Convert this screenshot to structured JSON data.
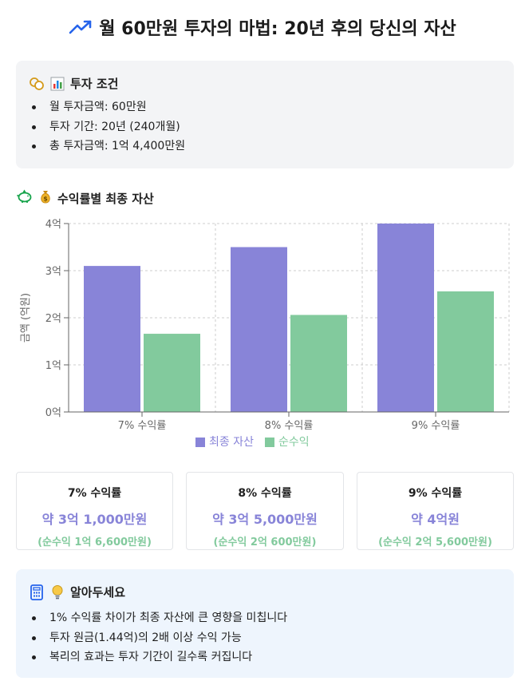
{
  "title": "월 60만원 투자의 마법: 20년 후의 당신의 자산",
  "icons": {
    "title": "trending-up-icon",
    "conditions_a": "coins-icon",
    "conditions_b": "bar-chart-emoji-icon",
    "chart_a": "piggy-bank-icon",
    "chart_b": "money-bag-icon",
    "tips_a": "calculator-icon",
    "tips_b": "lightbulb-icon"
  },
  "conditions": {
    "heading": "투자 조건",
    "items": [
      "월 투자금액: 60만원",
      "투자 기간: 20년 (240개월)",
      "총 투자금액: 1억 4,400만원"
    ]
  },
  "chart_heading": "수익률별 최종 자산",
  "chart_data": {
    "type": "bar",
    "categories": [
      "7% 수익률",
      "8% 수익률",
      "9% 수익률"
    ],
    "series": [
      {
        "name": "최종 자산",
        "values": [
          3.1,
          3.5,
          4.0
        ],
        "color": "#8884d8"
      },
      {
        "name": "순수익",
        "values": [
          1.66,
          2.06,
          2.56
        ],
        "color": "#82ca9d"
      }
    ],
    "ylabel": "금액 (억원)",
    "ylim": [
      0,
      4
    ],
    "yticks": [
      "0억",
      "1억",
      "2억",
      "3억",
      "4억"
    ],
    "grid": true,
    "legend": "bottom"
  },
  "results": [
    {
      "rate": "7% 수익률",
      "value": "약 3억 1,000만원",
      "net": "(순수익 1억 6,600만원)"
    },
    {
      "rate": "8% 수익률",
      "value": "약 3억 5,000만원",
      "net": "(순수익 2억 600만원)"
    },
    {
      "rate": "9% 수익률",
      "value": "약 4억원",
      "net": "(순수익 2억 5,600만원)"
    }
  ],
  "tips": {
    "heading": "알아두세요",
    "items": [
      "1% 수익률 차이가 최종 자산에 큰 영향을 미칩니다",
      "투자 원금(1.44억)의 2배 이상 수익 가능",
      "복리의 효과는 투자 기간이 길수록 커집니다"
    ]
  }
}
